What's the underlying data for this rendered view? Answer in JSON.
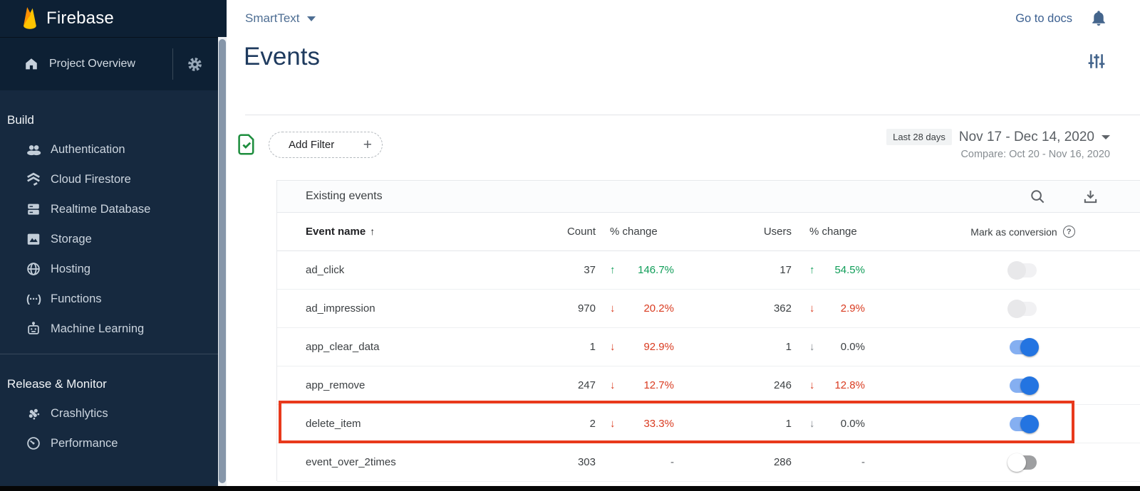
{
  "brand": {
    "name": "Firebase"
  },
  "sidebar": {
    "project_overview": "Project Overview",
    "sections": [
      {
        "heading": "Build",
        "items": [
          {
            "icon": "users-icon",
            "label": "Authentication"
          },
          {
            "icon": "firestore-icon",
            "label": "Cloud Firestore"
          },
          {
            "icon": "database-icon",
            "label": "Realtime Database"
          },
          {
            "icon": "storage-icon",
            "label": "Storage"
          },
          {
            "icon": "globe-icon",
            "label": "Hosting"
          },
          {
            "icon": "functions-icon",
            "label": "Functions"
          },
          {
            "icon": "robot-icon",
            "label": "Machine Learning"
          }
        ]
      },
      {
        "heading": "Release & Monitor",
        "items": [
          {
            "icon": "crashlytics-icon",
            "label": "Crashlytics"
          },
          {
            "icon": "speedometer-icon",
            "label": "Performance"
          }
        ]
      }
    ]
  },
  "topbar": {
    "project_label": "SmartText",
    "go_to_docs_label": "Go to docs"
  },
  "page": {
    "title": "Events"
  },
  "filter_bar": {
    "add_filter_label": "Add Filter",
    "plus_glyph": "+",
    "range_badge": "Last 28 days",
    "date_range": "Nov 17 - Dec 14, 2020",
    "compare_label": "Compare: Oct 20 - Nov 16, 2020"
  },
  "events_card": {
    "title": "Existing events",
    "columns": {
      "event_name": "Event name",
      "count": "Count",
      "count_change": "% change",
      "users": "Users",
      "users_change": "% change",
      "conversion": "Mark as conversion"
    },
    "rows": [
      {
        "name": "ad_click",
        "count": "37",
        "count_change": {
          "dir": "up",
          "value": "146.7%",
          "tone": "positive"
        },
        "users": "17",
        "users_change": {
          "dir": "up",
          "value": "54.5%",
          "tone": "positive"
        },
        "conversion_toggle": "disabled",
        "highlighted": false
      },
      {
        "name": "ad_impression",
        "count": "970",
        "count_change": {
          "dir": "down",
          "value": "20.2%",
          "tone": "negative"
        },
        "users": "362",
        "users_change": {
          "dir": "down",
          "value": "2.9%",
          "tone": "negative"
        },
        "conversion_toggle": "disabled",
        "highlighted": false
      },
      {
        "name": "app_clear_data",
        "count": "1",
        "count_change": {
          "dir": "down",
          "value": "92.9%",
          "tone": "negative"
        },
        "users": "1",
        "users_change": {
          "dir": "down",
          "value": "0.0%",
          "tone": "neutral"
        },
        "conversion_toggle": "on",
        "highlighted": false
      },
      {
        "name": "app_remove",
        "count": "247",
        "count_change": {
          "dir": "down",
          "value": "12.7%",
          "tone": "negative"
        },
        "users": "246",
        "users_change": {
          "dir": "down",
          "value": "12.8%",
          "tone": "negative"
        },
        "conversion_toggle": "on",
        "highlighted": false
      },
      {
        "name": "delete_item",
        "count": "2",
        "count_change": {
          "dir": "down",
          "value": "33.3%",
          "tone": "negative"
        },
        "users": "1",
        "users_change": {
          "dir": "down",
          "value": "0.0%",
          "tone": "neutral"
        },
        "conversion_toggle": "on",
        "highlighted": true
      },
      {
        "name": "event_over_2times",
        "count": "303",
        "count_change": {
          "dir": "none",
          "value": "-",
          "tone": "none"
        },
        "users": "286",
        "users_change": {
          "dir": "none",
          "value": "-",
          "tone": "none"
        },
        "conversion_toggle": "off",
        "highlighted": false
      }
    ]
  },
  "colors": {
    "positive": "#0f9d58",
    "negative": "#d93b20",
    "neutral_arrow": "#80868b",
    "toggle_on": "#2374e1",
    "highlight_box": "#e8391c",
    "sidebar_bg": "#16293f",
    "sidebar_header_bg": "#0d2034"
  }
}
